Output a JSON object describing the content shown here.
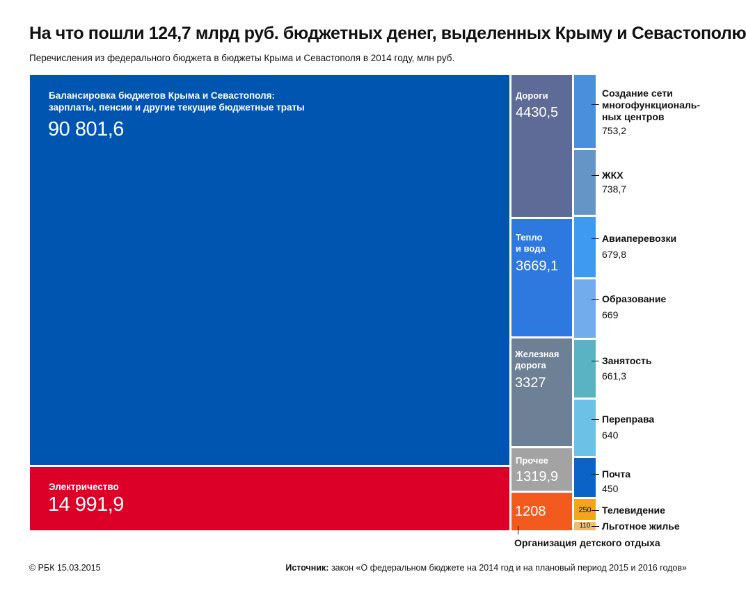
{
  "chart_data": {
    "type": "treemap",
    "title": "На что пошли 124,7 млрд руб. бюджетных денег, выделенных Крыму и Севастополю",
    "subtitle": "Перечисления из федерального бюджета в бюджеты Крыма и Севастополя в 2014 году, млн руб.",
    "unit": "млн руб.",
    "items": [
      {
        "key": "balance",
        "label_line1": "Балансировка бюджетов Крыма и Севастополя:",
        "label_line2": "зарплаты, пенсии и другие текущие бюджетные траты",
        "value": 90801.6,
        "value_label": "90 801,6",
        "color": "#0055b0"
      },
      {
        "key": "electricity",
        "label": "Электричество",
        "value": 14991.9,
        "value_label": "14 991,9",
        "color": "#dc0028"
      },
      {
        "key": "roads",
        "label": "Дороги",
        "value": 4430.5,
        "value_label": "4430,5",
        "color": "#5e6b96"
      },
      {
        "key": "heat_water",
        "label_line1": "Тепло",
        "label_line2": "и вода",
        "value": 3669.1,
        "value_label": "3669,1",
        "color": "#2d79df"
      },
      {
        "key": "railway",
        "label_line1": "Железная",
        "label_line2": "дорога",
        "value": 3327,
        "value_label": "3327",
        "color": "#6d8095"
      },
      {
        "key": "other",
        "label": "Прочее",
        "value": 1319.9,
        "value_label": "1319,9",
        "color": "#a3a3a3"
      },
      {
        "key": "kids_rest",
        "label": "Организация детского отдыха",
        "value": 1208,
        "value_label": "1208",
        "color": "#f25a1e"
      },
      {
        "key": "mfc",
        "label_line1": "Создание сети",
        "label_line2": "многофункциональ-",
        "label_line3": "ных центров",
        "value": 753.2,
        "value_label": "753,2",
        "color": "#4a8fdc"
      },
      {
        "key": "housing",
        "label": "ЖКХ",
        "value": 738.7,
        "value_label": "738,7",
        "color": "#6495c6"
      },
      {
        "key": "air",
        "label": "Авиаперевозки",
        "value": 679.8,
        "value_label": "679,8",
        "color": "#3d9af0"
      },
      {
        "key": "education",
        "label": "Образование",
        "value": 669,
        "value_label": "669",
        "color": "#72acec"
      },
      {
        "key": "employment",
        "label": "Занятость",
        "value": 661.3,
        "value_label": "661,3",
        "color": "#5ab3c2"
      },
      {
        "key": "ferry",
        "label": "Переправа",
        "value": 640,
        "value_label": "640",
        "color": "#6cc2e6"
      },
      {
        "key": "post",
        "label": "Почта",
        "value": 450,
        "value_label": "450",
        "color": "#0b63c7"
      },
      {
        "key": "tv",
        "label": "Телевидение",
        "value": 250,
        "value_label": "250",
        "color": "#f5a51c"
      },
      {
        "key": "housing_pref",
        "label": "Льготное жилье",
        "value": 110,
        "value_label": "110",
        "color": "#f2bd6a"
      }
    ]
  },
  "footer": {
    "copyright": "© РБК 15.03.2015",
    "source_label": "Источник:",
    "source_text": " закон «О федеральном бюджете на 2014 год и на плановый период 2015 и 2016 годов»"
  }
}
